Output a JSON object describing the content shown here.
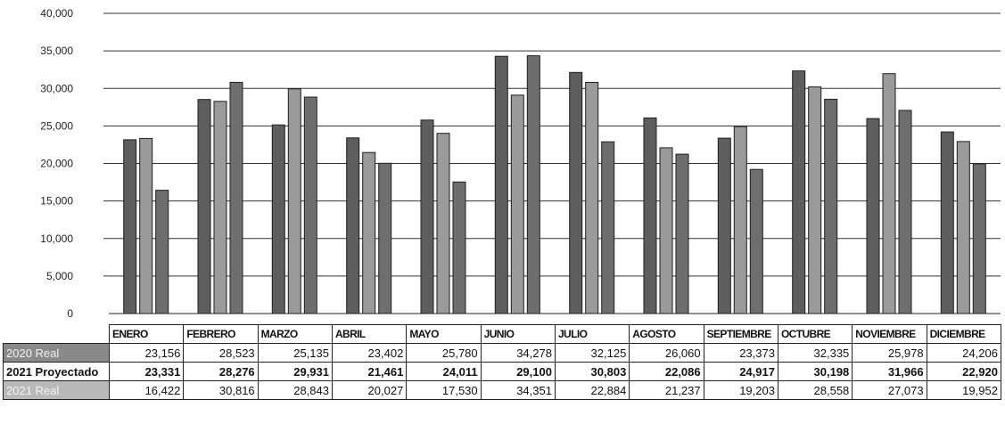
{
  "chart_data": {
    "type": "bar",
    "categories": [
      "ENERO",
      "FEBRERO",
      "MARZO",
      "ABRIL",
      "MAYO",
      "JUNIO",
      "JULIO",
      "AGOSTO",
      "SEPTIEMBRE",
      "OCTUBRE",
      "NOVIEMBRE",
      "DICIEMBRE"
    ],
    "series": [
      {
        "name": "2020 Real",
        "color": "#5e5e5e",
        "values": [
          23156,
          28523,
          25135,
          23402,
          25780,
          34278,
          32125,
          26060,
          23373,
          32335,
          25978,
          24206
        ],
        "labels": [
          "23,156",
          "28,523",
          "25,135",
          "23,402",
          "25,780",
          "34,278",
          "32,125",
          "26,060",
          "23,373",
          "32,335",
          "25,978",
          "24,206"
        ]
      },
      {
        "name": "2021 Proyectado",
        "color": "#9a9a9a",
        "values": [
          23331,
          28276,
          29931,
          21461,
          24011,
          29100,
          30803,
          22086,
          24917,
          30198,
          31966,
          22920
        ],
        "labels": [
          "23,331",
          "28,276",
          "29,931",
          "21,461",
          "24,011",
          "29,100",
          "30,803",
          "22,086",
          "24,917",
          "30,198",
          "31,966",
          "22,920"
        ]
      },
      {
        "name": "2021 Real",
        "color": "#6e6e6e",
        "values": [
          16422,
          30816,
          28843,
          20027,
          17530,
          34351,
          22884,
          21237,
          19203,
          28558,
          27073,
          19952
        ],
        "labels": [
          "16,422",
          "30,816",
          "28,843",
          "20,027",
          "17,530",
          "34,351",
          "22,884",
          "21,237",
          "19,203",
          "28,558",
          "27,073",
          "19,952"
        ]
      }
    ],
    "y_ticks": [
      "0",
      "5,000",
      "10,000",
      "15,000",
      "20,000",
      "25,000",
      "30,000",
      "35,000",
      "40,000"
    ],
    "ylim": [
      0,
      40000
    ],
    "grid": true,
    "legend": "data table below chart"
  }
}
